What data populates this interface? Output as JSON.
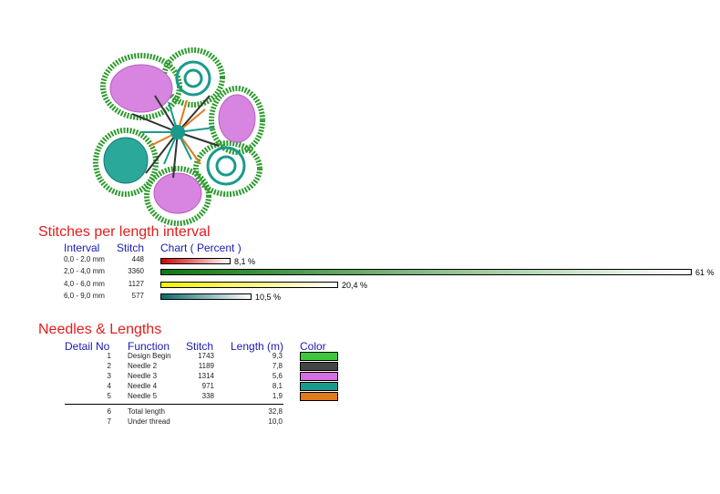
{
  "intervals": {
    "title": "Stitches per length interval",
    "headers": {
      "interval": "Interval",
      "stitch": "Stitch",
      "chart": "Chart ( Percent )"
    },
    "rows": [
      {
        "interval": "0,0 - 2,0 mm",
        "stitch": "448",
        "percent_label": "8,1 %",
        "percent": 8.1,
        "color_start": "#d10000",
        "color_end": "#ffffff"
      },
      {
        "interval": "2,0 - 4,0 mm",
        "stitch": "3360",
        "percent_label": "61 %",
        "percent": 61,
        "color_start": "#0e7a0e",
        "color_end": "#ffffff"
      },
      {
        "interval": "4,0 - 6,0 mm",
        "stitch": "1127",
        "percent_label": "20,4 %",
        "percent": 20.4,
        "color_start": "#f2f200",
        "color_end": "#ffffff"
      },
      {
        "interval": "6,0 - 9,0 mm",
        "stitch": "577",
        "percent_label": "10,5 %",
        "percent": 10.5,
        "color_start": "#0b6b6b",
        "color_end": "#ffffff"
      }
    ]
  },
  "needles": {
    "title": "Needles & Lengths",
    "headers": {
      "detail": "Detail No",
      "function": "Function",
      "stitch": "Stitch",
      "length": "Length (m)",
      "color": "Color"
    },
    "rows": [
      {
        "no": "1",
        "function": "Design Begin",
        "stitch": "1743",
        "length": "9,3",
        "color": "#3cc83c"
      },
      {
        "no": "2",
        "function": "Needle 2",
        "stitch": "1189",
        "length": "7,8",
        "color": "#444444"
      },
      {
        "no": "3",
        "function": "Needle 3",
        "stitch": "1314",
        "length": "5,6",
        "color": "#d66fe0"
      },
      {
        "no": "4",
        "function": "Needle 4",
        "stitch": "971",
        "length": "8,1",
        "color": "#1a9a8c"
      },
      {
        "no": "5",
        "function": "Needle 5",
        "stitch": "338",
        "length": "1,9",
        "color": "#e07b1c"
      }
    ],
    "totals": [
      {
        "no": "6",
        "function": "Total length",
        "length": "32,8"
      },
      {
        "no": "7",
        "function": "Under thread",
        "length": "10,0"
      }
    ]
  }
}
